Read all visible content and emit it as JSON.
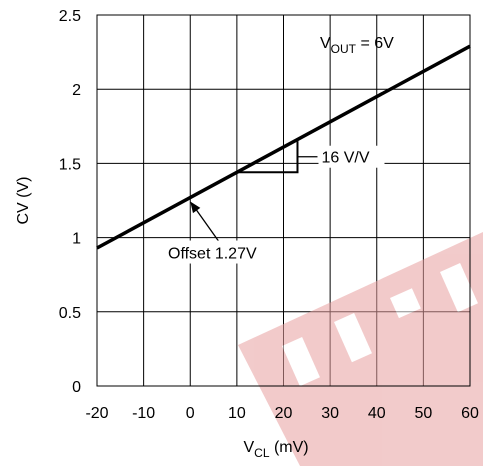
{
  "chart_data": {
    "type": "line",
    "xlabel": {
      "main": "V",
      "sub": "CL",
      "rest": " (mV)"
    },
    "ylabel": "CV (V)",
    "xlim": [
      -20,
      60
    ],
    "ylim": [
      0,
      2.5
    ],
    "x_ticks": [
      "-20",
      "-10",
      "0",
      "10",
      "20",
      "30",
      "40",
      "50",
      "60"
    ],
    "y_ticks": [
      "0",
      "0.5",
      "1",
      "1.5",
      "2",
      "2.5"
    ],
    "x_tick_values": [
      -20,
      -10,
      0,
      10,
      20,
      30,
      40,
      50,
      60
    ],
    "y_tick_values": [
      0,
      0.5,
      1,
      1.5,
      2,
      2.5
    ],
    "grid": true,
    "series": [
      {
        "x": [
          -20,
          60
        ],
        "y": [
          0.93,
          2.29
        ]
      }
    ],
    "annotations": {
      "vout": {
        "main": "V",
        "sub": "OUT",
        "rest": " = 6V"
      },
      "slope": "16 V/V",
      "offset": "Offset 1.27V"
    },
    "slope_triangle": {
      "x0": 10,
      "x1": 23,
      "y0": 1.44,
      "y1": 1.65
    },
    "offset_point": {
      "x": 0,
      "y": 1.27
    },
    "colors": {
      "line": "#000000",
      "grid": "#000000",
      "watermark": "#e8a0a0"
    }
  }
}
